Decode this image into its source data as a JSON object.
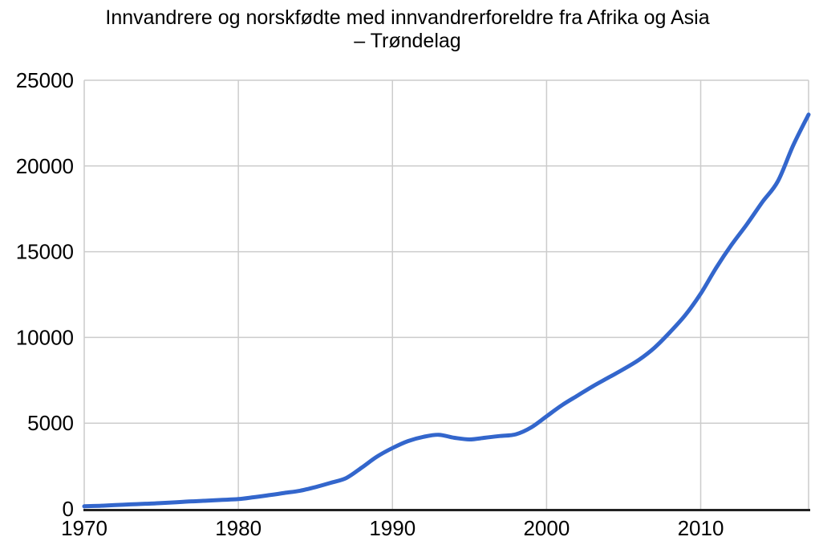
{
  "chart": {
    "title_line1": "Innvandrere og norskfødte med innvandrerforeldre fra Afrika og Asia",
    "title_line2": "– Trøndelag"
  },
  "chart_data": {
    "type": "line",
    "title": "Innvandrere og norskfødte med innvandrerforeldre fra Afrika og Asia – Trøndelag",
    "xlabel": "",
    "ylabel": "",
    "x": [
      1970,
      1971,
      1972,
      1973,
      1974,
      1975,
      1976,
      1977,
      1978,
      1979,
      1980,
      1981,
      1982,
      1983,
      1984,
      1985,
      1986,
      1987,
      1988,
      1989,
      1990,
      1991,
      1992,
      1993,
      1994,
      1995,
      1996,
      1997,
      1998,
      1999,
      2000,
      2001,
      2002,
      2003,
      2004,
      2005,
      2006,
      2007,
      2008,
      2009,
      2010,
      2011,
      2012,
      2013,
      2014,
      2015,
      2016,
      2017
    ],
    "series": [
      {
        "name": "Innvandrere og norskfødte med innvandrerforeldre fra Afrika og Asia – Trøndelag",
        "values": [
          150,
          180,
          220,
          260,
          300,
          340,
          390,
          440,
          480,
          530,
          570,
          680,
          800,
          930,
          1060,
          1270,
          1520,
          1800,
          2400,
          3050,
          3550,
          3950,
          4200,
          4320,
          4150,
          4050,
          4150,
          4250,
          4350,
          4750,
          5400,
          6050,
          6600,
          7150,
          7650,
          8150,
          8700,
          9400,
          10300,
          11300,
          12550,
          14050,
          15400,
          16600,
          17900,
          19100,
          21200,
          23000
        ]
      }
    ],
    "xlim": [
      1970,
      2017
    ],
    "ylim": [
      0,
      25000
    ],
    "xticks": [
      1970,
      1980,
      1990,
      2000,
      2010
    ],
    "yticks": [
      0,
      5000,
      10000,
      15000,
      20000,
      25000
    ],
    "grid": true,
    "legend": "none",
    "line_color": "#3366cc",
    "line_width": 5,
    "grid_color": "#cccccc",
    "axis_color": "#222222",
    "text_color": "#000000",
    "background": "#ffffff"
  }
}
